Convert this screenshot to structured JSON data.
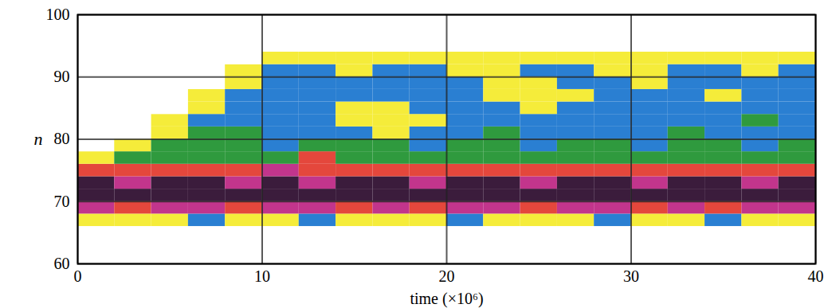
{
  "chart_data": {
    "type": "heatmap",
    "x_label": "time (×10⁶)",
    "y_label": "n",
    "x": [
      0,
      2,
      4,
      6,
      8,
      10,
      12,
      14,
      16,
      18,
      20,
      22,
      24,
      26,
      28,
      30,
      32,
      34,
      36,
      38
    ],
    "y": [
      64,
      66,
      68,
      70,
      72,
      74,
      76,
      78,
      80,
      82,
      84,
      86,
      88,
      90,
      92
    ],
    "z": [
      [
        0,
        0,
        0,
        0,
        0,
        0,
        0,
        0,
        0,
        0,
        0,
        0,
        0,
        0,
        0,
        0,
        0,
        0,
        0,
        0
      ],
      [
        1,
        1,
        1,
        2,
        1,
        1,
        2,
        1,
        1,
        1,
        2,
        1,
        1,
        1,
        2,
        1,
        1,
        2,
        1,
        1
      ],
      [
        5,
        4,
        5,
        5,
        4,
        5,
        5,
        4,
        5,
        4,
        5,
        5,
        4,
        5,
        5,
        4,
        5,
        4,
        5,
        5
      ],
      [
        6,
        6,
        6,
        6,
        6,
        6,
        6,
        6,
        6,
        6,
        6,
        6,
        6,
        6,
        6,
        6,
        6,
        6,
        6,
        6
      ],
      [
        6,
        5,
        6,
        6,
        5,
        6,
        5,
        6,
        6,
        5,
        6,
        6,
        5,
        6,
        6,
        5,
        6,
        6,
        5,
        6
      ],
      [
        4,
        4,
        4,
        4,
        4,
        5,
        4,
        4,
        4,
        4,
        4,
        4,
        4,
        4,
        4,
        4,
        4,
        4,
        4,
        4
      ],
      [
        1,
        3,
        3,
        3,
        3,
        3,
        4,
        3,
        3,
        3,
        3,
        3,
        3,
        3,
        3,
        3,
        3,
        3,
        3,
        3
      ],
      [
        0,
        1,
        3,
        3,
        3,
        2,
        3,
        3,
        3,
        2,
        3,
        3,
        2,
        3,
        3,
        2,
        3,
        3,
        2,
        3
      ],
      [
        0,
        0,
        1,
        3,
        3,
        2,
        2,
        2,
        1,
        2,
        2,
        3,
        2,
        2,
        2,
        2,
        3,
        2,
        2,
        2
      ],
      [
        0,
        0,
        1,
        2,
        2,
        2,
        2,
        1,
        1,
        1,
        2,
        2,
        2,
        2,
        2,
        2,
        2,
        2,
        3,
        2
      ],
      [
        0,
        0,
        0,
        1,
        2,
        2,
        2,
        1,
        1,
        2,
        2,
        2,
        1,
        2,
        2,
        2,
        2,
        2,
        2,
        2
      ],
      [
        0,
        0,
        0,
        1,
        2,
        2,
        2,
        2,
        2,
        2,
        2,
        1,
        1,
        1,
        2,
        2,
        2,
        1,
        2,
        2
      ],
      [
        0,
        0,
        0,
        0,
        1,
        2,
        2,
        2,
        2,
        2,
        2,
        1,
        1,
        2,
        2,
        1,
        2,
        2,
        2,
        2
      ],
      [
        0,
        0,
        0,
        0,
        1,
        2,
        2,
        1,
        2,
        2,
        1,
        1,
        2,
        2,
        1,
        1,
        2,
        2,
        1,
        2
      ],
      [
        0,
        0,
        0,
        0,
        0,
        1,
        1,
        1,
        1,
        1,
        1,
        1,
        1,
        1,
        1,
        1,
        1,
        1,
        1,
        1
      ]
    ],
    "colors": [
      "#ffffff",
      "#f5ec3a",
      "#2a7fd2",
      "#2f9a3e",
      "#e4473c",
      "#c2358c",
      "#3b1c3c"
    ],
    "xlim": [
      0,
      40
    ],
    "ylim": [
      60,
      100
    ],
    "xticks": [
      0,
      10,
      20,
      30,
      40
    ],
    "yticks": [
      60,
      70,
      80,
      90,
      100
    ],
    "grid": true
  }
}
